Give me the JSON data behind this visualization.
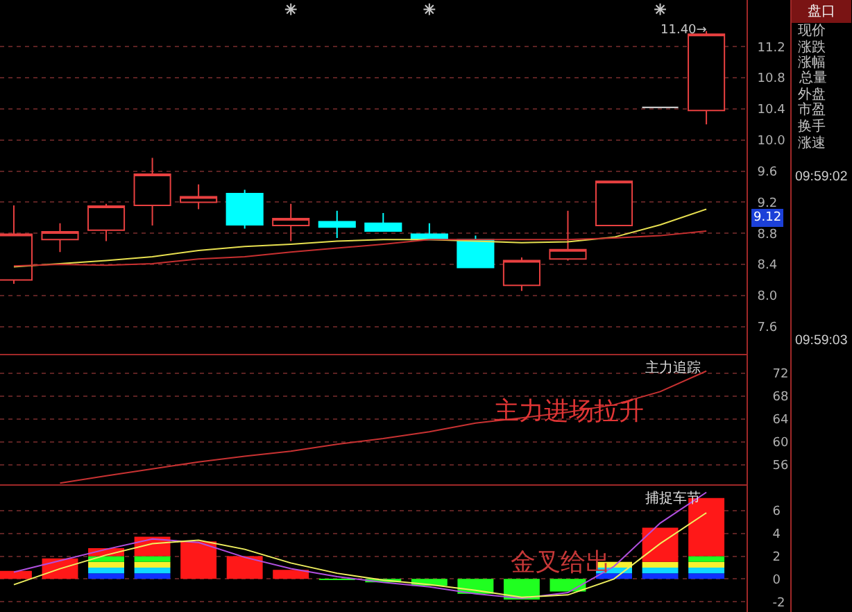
{
  "chart_data": [
    {
      "type": "candlestick",
      "categories": [
        null,
        null,
        null,
        null,
        null,
        null,
        null,
        null,
        null,
        null,
        null,
        null,
        null,
        null,
        null,
        null
      ],
      "ohlc": [
        [
          8.2,
          9.16,
          8.15,
          8.79
        ],
        [
          8.72,
          8.93,
          8.56,
          8.82
        ],
        [
          8.84,
          9.18,
          8.7,
          9.15
        ],
        [
          9.16,
          9.77,
          8.9,
          9.56
        ],
        [
          9.2,
          9.43,
          9.11,
          9.27
        ],
        [
          9.31,
          9.36,
          8.86,
          8.91
        ],
        [
          8.9,
          9.18,
          8.7,
          8.99
        ],
        [
          8.95,
          9.09,
          8.74,
          8.88
        ],
        [
          8.93,
          9.06,
          8.83,
          8.83
        ],
        [
          8.79,
          8.93,
          8.72,
          8.72
        ],
        [
          8.72,
          8.77,
          8.36,
          8.36
        ],
        [
          8.13,
          8.49,
          8.06,
          8.45
        ],
        [
          8.47,
          9.09,
          8.45,
          8.59
        ],
        [
          8.9,
          9.47,
          8.9,
          9.47
        ],
        [
          10.42,
          10.42,
          10.42,
          10.42
        ],
        [
          10.38,
          11.4,
          10.2,
          11.36
        ]
      ],
      "colors": [
        "#e84040",
        "#e84040",
        "#e84040",
        "#e84040",
        "#e84040",
        "#00ffff",
        "#e84040",
        "#00ffff",
        "#00ffff",
        "#00ffff",
        "#00ffff",
        "#e84040",
        "#e84040",
        "#e84040",
        "#e0e0e0",
        "#e84040"
      ],
      "series": [
        {
          "type": "line",
          "color": "#e8e050",
          "values": [
            8.37,
            8.41,
            8.45,
            8.5,
            8.58,
            8.63,
            8.66,
            8.7,
            8.72,
            8.72,
            8.7,
            8.68,
            8.69,
            8.75,
            8.91,
            9.11
          ]
        },
        {
          "type": "line",
          "color": "#c83030",
          "values": [
            8.38,
            8.4,
            8.39,
            8.41,
            8.47,
            8.5,
            8.56,
            8.61,
            8.66,
            8.72,
            8.72,
            8.72,
            8.72,
            8.74,
            8.77,
            8.83
          ]
        },
        {
          "type": "scatter",
          "marker": "cross",
          "color": "#c8c8c8",
          "values": [
            null,
            null,
            null,
            null,
            null,
            null,
            11.68,
            null,
            null,
            11.68,
            null,
            null,
            null,
            null,
            11.68,
            null
          ]
        }
      ],
      "ylim": [
        7.25,
        11.8
      ],
      "yticks": [
        11.2,
        10.8,
        10.4,
        {
          "value": 10,
          "label": "10.0"
        },
        9.6,
        9.2,
        8.8,
        8.4,
        {
          "value": 8,
          "label": "8.0"
        },
        7.6
      ],
      "grid": "y",
      "tick_labels": "y",
      "annotations": [
        "11.40→",
        "9.12"
      ]
    },
    {
      "type": "line",
      "title": "主力追踪",
      "categories": [
        null,
        null,
        null,
        null,
        null,
        null,
        null,
        null,
        null,
        null,
        null,
        null,
        null,
        null,
        null,
        null
      ],
      "series": [
        {
          "color": "#c83232",
          "values": [
            null,
            52.8,
            54.1,
            55.3,
            56.5,
            57.5,
            58.4,
            59.6,
            60.6,
            61.8,
            63.3,
            64.2,
            65.2,
            66.5,
            68.8,
            72.4
          ]
        }
      ],
      "ylim": [
        52.6,
        75.4
      ],
      "yticks": [
        72,
        68,
        64,
        60,
        56
      ],
      "grid": "y",
      "tick_labels": "y",
      "annotations": [
        "主力进场拉升"
      ]
    },
    {
      "type": "bar",
      "stacked": true,
      "title": "捕捉车节",
      "categories": [
        null,
        null,
        null,
        null,
        null,
        null,
        null,
        null,
        null,
        null,
        null,
        null,
        null,
        null,
        null,
        null
      ],
      "series": [
        {
          "color": "#1030ff",
          "values": [
            null,
            null,
            0.5,
            0.5,
            null,
            null,
            null,
            null,
            null,
            null,
            null,
            null,
            null,
            0.5,
            0.5,
            0.5
          ]
        },
        {
          "color": "#10d8ff",
          "values": [
            null,
            null,
            0.5,
            0.5,
            null,
            null,
            null,
            null,
            null,
            null,
            null,
            null,
            null,
            0.5,
            0.5,
            0.5
          ]
        },
        {
          "color": "#f8f030",
          "values": [
            null,
            null,
            0.5,
            0.5,
            null,
            null,
            null,
            null,
            null,
            null,
            null,
            null,
            null,
            0.5,
            0.5,
            0.5
          ]
        },
        {
          "color": "#20ff20",
          "values": [
            null,
            null,
            0.5,
            0.5,
            null,
            null,
            null,
            -0.1,
            -0.3,
            -0.6,
            -1.3,
            -1.8,
            -1.1,
            null,
            null,
            0.5
          ]
        },
        {
          "color": "#ff1818",
          "values": [
            0.7,
            1.8,
            0.7,
            1.7,
            3.3,
            2.0,
            0.8,
            null,
            null,
            null,
            null,
            null,
            null,
            null,
            3.0,
            5.1
          ]
        },
        {
          "type": "line",
          "color": "#b050e0",
          "values": [
            0.6,
            1.6,
            2.6,
            3.5,
            3.2,
            1.9,
            0.9,
            0.2,
            -0.3,
            -0.7,
            -1.3,
            -1.7,
            -1.2,
            1.1,
            4.9,
            7.6
          ]
        },
        {
          "type": "line",
          "color": "#f0f060",
          "values": [
            -0.5,
            0.9,
            2.1,
            3.1,
            3.4,
            2.6,
            1.4,
            0.5,
            -0.1,
            -0.5,
            -1.0,
            -1.6,
            -1.4,
            0.0,
            3.1,
            5.8
          ]
        }
      ],
      "ylim": [
        -2.9,
        8.3
      ],
      "yticks": [
        6,
        4,
        2,
        0,
        -2
      ],
      "grid": "y",
      "tick_labels": "y",
      "annotations": [
        "金叉给出"
      ]
    },
    {
      "type": "other",
      "title": "盘口",
      "categories": [
        "现价",
        "涨跌",
        "涨幅",
        "总量",
        "外盘",
        "市盈",
        "换手",
        "涨速"
      ],
      "annotations": [
        "09:59:02",
        "09:59:03"
      ]
    }
  ]
}
